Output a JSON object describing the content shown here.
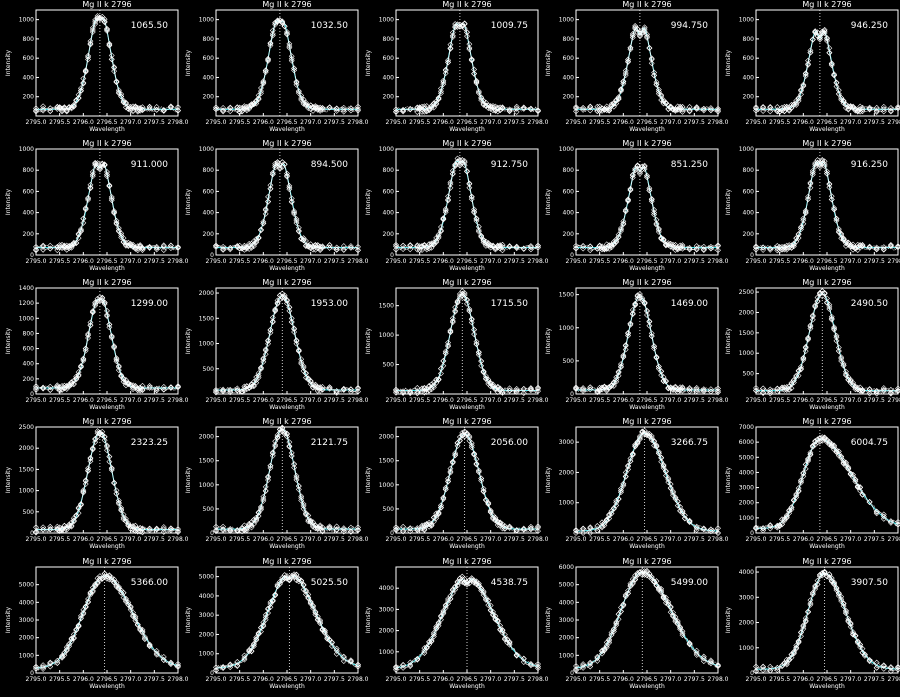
{
  "colors": {
    "background": "#000000",
    "axes": "#ffffff",
    "text": "#ffffff",
    "fit_line": "#33e0e6",
    "obs_markers": "#ffffff",
    "center_marker": "#ffffff"
  },
  "chart_data": [
    {
      "type": "line",
      "title": "Mg II k 2796",
      "annotation": "1065.50",
      "xlabel": "Wavelength",
      "ylabel": "Intensity",
      "xlim": [
        2795.0,
        2798.0
      ],
      "ylim": [
        0,
        1100
      ],
      "xticks": [
        "2795.0",
        "2795.5",
        "2796.0",
        "2796.5",
        "2797.0",
        "2797.5",
        "2798.0"
      ],
      "yticks": [
        200,
        400,
        600,
        800,
        1000
      ],
      "profile": {
        "center": 2796.35,
        "amplitude": 1030,
        "sigma": 0.22,
        "baseline": 70,
        "dip": 0.1,
        "skew": 0
      }
    },
    {
      "type": "line",
      "title": "Mg II k 2796",
      "annotation": "1032.50",
      "xlabel": "Wavelength",
      "ylabel": "Intensity",
      "xlim": [
        2795.0,
        2798.0
      ],
      "ylim": [
        0,
        1100
      ],
      "xticks": [
        "2795.0",
        "2795.5",
        "2796.0",
        "2796.5",
        "2797.0",
        "2797.5",
        "2798.0"
      ],
      "yticks": [
        200,
        400,
        600,
        800,
        1000
      ],
      "profile": {
        "center": 2796.35,
        "amplitude": 1000,
        "sigma": 0.22,
        "baseline": 70,
        "dip": 0.1,
        "skew": 0
      }
    },
    {
      "type": "line",
      "title": "Mg II k 2796",
      "annotation": "1009.75",
      "xlabel": "Wavelength",
      "ylabel": "Intensity",
      "xlim": [
        2795.0,
        2798.0
      ],
      "ylim": [
        0,
        1100
      ],
      "xticks": [
        "2795.0",
        "2795.5",
        "2796.0",
        "2796.5",
        "2797.0",
        "2797.5",
        "2798.0"
      ],
      "yticks": [
        200,
        400,
        600,
        800,
        1000
      ],
      "profile": {
        "center": 2796.35,
        "amplitude": 980,
        "sigma": 0.22,
        "baseline": 70,
        "dip": 0.12,
        "skew": 0
      }
    },
    {
      "type": "line",
      "title": "Mg II k 2796",
      "annotation": "994.750",
      "xlabel": "Wavelength",
      "ylabel": "Intensity",
      "xlim": [
        2795.0,
        2798.0
      ],
      "ylim": [
        0,
        1100
      ],
      "xticks": [
        "2795.0",
        "2795.5",
        "2796.0",
        "2796.5",
        "2797.0",
        "2797.5",
        "2798.0"
      ],
      "yticks": [
        200,
        400,
        600,
        800,
        1000
      ],
      "profile": {
        "center": 2796.35,
        "amplitude": 960,
        "sigma": 0.22,
        "baseline": 70,
        "dip": 0.2,
        "skew": 0
      }
    },
    {
      "type": "line",
      "title": "Mg II k 2796",
      "annotation": "946.250",
      "xlabel": "Wavelength",
      "ylabel": "Intensity",
      "xlim": [
        2795.0,
        2798.0
      ],
      "ylim": [
        0,
        1100
      ],
      "xticks": [
        "2795.0",
        "2795.5",
        "2796.0",
        "2796.5",
        "2797.0",
        "2797.5",
        "2798.0"
      ],
      "yticks": [
        200,
        400,
        600,
        800,
        1000
      ],
      "profile": {
        "center": 2796.35,
        "amplitude": 920,
        "sigma": 0.22,
        "baseline": 70,
        "dip": 0.2,
        "skew": 0
      }
    },
    {
      "type": "line",
      "title": "Mg II k 2796",
      "annotation": "911.000",
      "xlabel": "Wavelength",
      "ylabel": "Intensity",
      "xlim": [
        2795.0,
        2798.0
      ],
      "ylim": [
        0,
        1000
      ],
      "xticks": [
        "2795.0",
        "2795.5",
        "2796.0",
        "2796.5",
        "2797.0",
        "2797.5",
        "2798.0"
      ],
      "yticks": [
        0,
        200,
        400,
        600,
        800,
        1000
      ],
      "profile": {
        "center": 2796.35,
        "amplitude": 880,
        "sigma": 0.22,
        "baseline": 70,
        "dip": 0.15,
        "skew": 0
      }
    },
    {
      "type": "line",
      "title": "Mg II k 2796",
      "annotation": "894.500",
      "xlabel": "Wavelength",
      "ylabel": "Intensity",
      "xlim": [
        2795.0,
        2798.0
      ],
      "ylim": [
        0,
        1000
      ],
      "xticks": [
        "2795.0",
        "2795.5",
        "2796.0",
        "2796.5",
        "2797.0",
        "2797.5",
        "2798.0"
      ],
      "yticks": [
        0,
        200,
        400,
        600,
        800,
        1000
      ],
      "profile": {
        "center": 2796.35,
        "amplitude": 870,
        "sigma": 0.22,
        "baseline": 70,
        "dip": 0.12,
        "skew": 0
      }
    },
    {
      "type": "line",
      "title": "Mg II k 2796",
      "annotation": "912.750",
      "xlabel": "Wavelength",
      "ylabel": "Intensity",
      "xlim": [
        2795.0,
        2798.0
      ],
      "ylim": [
        0,
        1000
      ],
      "xticks": [
        "2795.0",
        "2795.5",
        "2796.0",
        "2796.5",
        "2797.0",
        "2797.5",
        "2798.0"
      ],
      "yticks": [
        0,
        200,
        400,
        600,
        800,
        1000
      ],
      "profile": {
        "center": 2796.35,
        "amplitude": 890,
        "sigma": 0.22,
        "baseline": 70,
        "dip": 0.1,
        "skew": 0
      }
    },
    {
      "type": "line",
      "title": "Mg II k 2796",
      "annotation": "851.250",
      "xlabel": "Wavelength",
      "ylabel": "Intensity",
      "xlim": [
        2795.0,
        2798.0
      ],
      "ylim": [
        0,
        1000
      ],
      "xticks": [
        "2795.0",
        "2795.5",
        "2796.0",
        "2796.5",
        "2797.0",
        "2797.5",
        "2798.0"
      ],
      "yticks": [
        0,
        200,
        400,
        600,
        800,
        1000
      ],
      "profile": {
        "center": 2796.35,
        "amplitude": 850,
        "sigma": 0.22,
        "baseline": 70,
        "dip": 0.15,
        "skew": 0
      }
    },
    {
      "type": "line",
      "title": "Mg II k 2796",
      "annotation": "916.250",
      "xlabel": "Wavelength",
      "ylabel": "Intensity",
      "xlim": [
        2795.0,
        2798.0
      ],
      "ylim": [
        0,
        1000
      ],
      "xticks": [
        "2795.0",
        "2795.5",
        "2796.0",
        "2796.5",
        "2797.0",
        "2797.5",
        "2798.0"
      ],
      "yticks": [
        0,
        200,
        400,
        600,
        800,
        1000
      ],
      "profile": {
        "center": 2796.35,
        "amplitude": 890,
        "sigma": 0.22,
        "baseline": 70,
        "dip": 0.12,
        "skew": 0
      }
    },
    {
      "type": "line",
      "title": "Mg II k 2796",
      "annotation": "1299.00",
      "xlabel": "Wavelength",
      "ylabel": "Intensity",
      "xlim": [
        2795.0,
        2798.0
      ],
      "ylim": [
        0,
        1400
      ],
      "xticks": [
        "2795.0",
        "2795.5",
        "2796.0",
        "2796.5",
        "2797.0",
        "2797.5",
        "2798.0"
      ],
      "yticks": [
        0,
        200,
        400,
        600,
        800,
        1000,
        1200,
        1400
      ],
      "profile": {
        "center": 2796.35,
        "amplitude": 1220,
        "sigma": 0.23,
        "baseline": 80,
        "dip": 0.04,
        "skew": 0
      }
    },
    {
      "type": "line",
      "title": "Mg II k 2796",
      "annotation": "1953.00",
      "xlabel": "Wavelength",
      "ylabel": "Intensity",
      "xlim": [
        2795.0,
        2798.0
      ],
      "ylim": [
        0,
        2100
      ],
      "xticks": [
        "2795.0",
        "2795.5",
        "2796.0",
        "2796.5",
        "2797.0",
        "2797.5",
        "2798.0"
      ],
      "yticks": [
        500,
        1000,
        1500,
        2000
      ],
      "profile": {
        "center": 2796.4,
        "amplitude": 1870,
        "sigma": 0.26,
        "baseline": 80,
        "dip": 0,
        "skew": 0
      }
    },
    {
      "type": "line",
      "title": "Mg II k 2796",
      "annotation": "1715.50",
      "xlabel": "Wavelength",
      "ylabel": "Intensity",
      "xlim": [
        2795.0,
        2798.0
      ],
      "ylim": [
        0,
        1800
      ],
      "xticks": [
        "2795.0",
        "2795.5",
        "2796.0",
        "2796.5",
        "2797.0",
        "2797.5",
        "2798.0"
      ],
      "yticks": [
        500,
        1000,
        1500
      ],
      "profile": {
        "center": 2796.4,
        "amplitude": 1640,
        "sigma": 0.25,
        "baseline": 60,
        "dip": 0,
        "skew": 0
      }
    },
    {
      "type": "line",
      "title": "Mg II k 2796",
      "annotation": "1469.00",
      "xlabel": "Wavelength",
      "ylabel": "Intensity",
      "xlim": [
        2795.0,
        2798.0
      ],
      "ylim": [
        0,
        1600
      ],
      "xticks": [
        "2795.0",
        "2795.5",
        "2796.0",
        "2796.5",
        "2797.0",
        "2797.5",
        "2798.0"
      ],
      "yticks": [
        0,
        500,
        1000,
        1500
      ],
      "profile": {
        "center": 2796.35,
        "amplitude": 1420,
        "sigma": 0.24,
        "baseline": 60,
        "dip": 0,
        "skew": 0
      }
    },
    {
      "type": "line",
      "title": "Mg II k 2796",
      "annotation": "2490.50",
      "xlabel": "Wavelength",
      "ylabel": "Intensity",
      "xlim": [
        2795.0,
        2798.0
      ],
      "ylim": [
        0,
        2600
      ],
      "xticks": [
        "2795.0",
        "2795.5",
        "2796.0",
        "2796.5",
        "2797.0",
        "2797.5",
        "2798.0"
      ],
      "yticks": [
        500,
        1000,
        1500,
        2000,
        2500
      ],
      "profile": {
        "center": 2796.4,
        "amplitude": 2380,
        "sigma": 0.27,
        "baseline": 80,
        "dip": 0,
        "skew": 0
      }
    },
    {
      "type": "line",
      "title": "Mg II k 2796",
      "annotation": "2323.25",
      "xlabel": "Wavelength",
      "ylabel": "Intensity",
      "xlim": [
        2795.0,
        2798.0
      ],
      "ylim": [
        0,
        2500
      ],
      "xticks": [
        "2795.0",
        "2795.5",
        "2796.0",
        "2796.5",
        "2797.0",
        "2797.5",
        "2798.0"
      ],
      "yticks": [
        0,
        500,
        1000,
        1500,
        2000,
        2500
      ],
      "profile": {
        "center": 2796.35,
        "amplitude": 2300,
        "sigma": 0.25,
        "baseline": 80,
        "dip": 0,
        "skew": 0
      }
    },
    {
      "type": "line",
      "title": "Mg II k 2796",
      "annotation": "2121.75",
      "xlabel": "Wavelength",
      "ylabel": "Intensity",
      "xlim": [
        2795.0,
        2798.0
      ],
      "ylim": [
        0,
        2200
      ],
      "xticks": [
        "2795.0",
        "2795.5",
        "2796.0",
        "2796.5",
        "2797.0",
        "2797.5",
        "2798.0"
      ],
      "yticks": [
        0,
        500,
        1000,
        1500,
        2000
      ],
      "profile": {
        "center": 2796.4,
        "amplitude": 2080,
        "sigma": 0.26,
        "baseline": 80,
        "dip": 0,
        "skew": 0
      }
    },
    {
      "type": "line",
      "title": "Mg II k 2796",
      "annotation": "2056.00",
      "xlabel": "Wavelength",
      "ylabel": "Intensity",
      "xlim": [
        2795.0,
        2798.0
      ],
      "ylim": [
        0,
        2200
      ],
      "xticks": [
        "2795.0",
        "2795.5",
        "2796.0",
        "2796.5",
        "2797.0",
        "2797.5",
        "2798.0"
      ],
      "yticks": [
        0,
        500,
        1000,
        1500,
        2000
      ],
      "profile": {
        "center": 2796.45,
        "amplitude": 1980,
        "sigma": 0.3,
        "baseline": 80,
        "dip": 0,
        "skew": 0
      }
    },
    {
      "type": "line",
      "title": "Mg II k 2796",
      "annotation": "3266.75",
      "xlabel": "Wavelength",
      "ylabel": "Intensity",
      "xlim": [
        2795.0,
        2798.0
      ],
      "ylim": [
        0,
        3500
      ],
      "xticks": [
        "2795.0",
        "2795.5",
        "2796.0",
        "2796.5",
        "2797.0",
        "2797.5",
        "2798.0"
      ],
      "yticks": [
        1000,
        2000,
        3000
      ],
      "profile": {
        "center": 2796.45,
        "amplitude": 3230,
        "sigma": 0.38,
        "baseline": 60,
        "dip": 0,
        "skew": 0.15
      }
    },
    {
      "type": "line",
      "title": "Mg II k 2796",
      "annotation": "6004.75",
      "xlabel": "Wavelength",
      "ylabel": "Intensity",
      "xlim": [
        2795.0,
        2798.0
      ],
      "ylim": [
        0,
        7000
      ],
      "xticks": [
        "2795.0",
        "2795.5",
        "2796.0",
        "2796.5",
        "2797.0",
        "2797.5",
        "2798.0"
      ],
      "yticks": [
        0,
        1000,
        2000,
        3000,
        4000,
        5000,
        6000,
        7000
      ],
      "profile": {
        "center": 2796.35,
        "amplitude": 5900,
        "sigma": 0.35,
        "baseline": 300,
        "dip": 0,
        "skew": 0.9
      }
    },
    {
      "type": "line",
      "title": "Mg II k 2796",
      "annotation": "5366.00",
      "xlabel": "Wavelength",
      "ylabel": "Intensity",
      "xlim": [
        2795.0,
        2798.0
      ],
      "ylim": [
        0,
        6000
      ],
      "xticks": [
        "2795.0",
        "2795.5",
        "2796.0",
        "2796.5",
        "2797.0",
        "2797.5",
        "2798.0"
      ],
      "yticks": [
        0,
        1000,
        2000,
        3000,
        4000,
        5000
      ],
      "profile": {
        "center": 2796.45,
        "amplitude": 5250,
        "sigma": 0.45,
        "baseline": 250,
        "dip": 0,
        "skew": 0.3
      }
    },
    {
      "type": "line",
      "title": "Mg II k 2796",
      "annotation": "5025.50",
      "xlabel": "Wavelength",
      "ylabel": "Intensity",
      "xlim": [
        2795.0,
        2798.0
      ],
      "ylim": [
        0,
        5500
      ],
      "xticks": [
        "2795.0",
        "2795.5",
        "2796.0",
        "2796.5",
        "2797.0",
        "2797.5",
        "2798.0"
      ],
      "yticks": [
        0,
        1000,
        2000,
        3000,
        4000,
        5000
      ],
      "profile": {
        "center": 2796.55,
        "amplitude": 4900,
        "sigma": 0.45,
        "baseline": 250,
        "dip": 0.05,
        "skew": 0.2
      }
    },
    {
      "type": "line",
      "title": "Mg II k 2796",
      "annotation": "4538.75",
      "xlabel": "Wavelength",
      "ylabel": "Intensity",
      "xlim": [
        2795.0,
        2798.0
      ],
      "ylim": [
        0,
        5000
      ],
      "xticks": [
        "2795.0",
        "2795.5",
        "2796.0",
        "2796.5",
        "2797.0",
        "2797.5",
        "2798.0"
      ],
      "yticks": [
        1000,
        2000,
        3000,
        4000
      ],
      "profile": {
        "center": 2796.5,
        "amplitude": 4350,
        "sigma": 0.5,
        "baseline": 200,
        "dip": 0.08,
        "skew": 0.1
      }
    },
    {
      "type": "line",
      "title": "Mg II k 2796",
      "annotation": "5499.00",
      "xlabel": "Wavelength",
      "ylabel": "Intensity",
      "xlim": [
        2795.0,
        2798.0
      ],
      "ylim": [
        0,
        6000
      ],
      "xticks": [
        "2795.0",
        "2795.5",
        "2796.0",
        "2796.5",
        "2797.0",
        "2797.5",
        "2798.0"
      ],
      "yticks": [
        0,
        1000,
        2000,
        3000,
        4000,
        5000,
        6000
      ],
      "profile": {
        "center": 2796.4,
        "amplitude": 5450,
        "sigma": 0.45,
        "baseline": 250,
        "dip": 0,
        "skew": 0.35
      }
    },
    {
      "type": "line",
      "title": "Mg II k 2796",
      "annotation": "3907.50",
      "xlabel": "Wavelength",
      "ylabel": "Intensity",
      "xlim": [
        2795.0,
        2798.0
      ],
      "ylim": [
        0,
        4200
      ],
      "xticks": [
        "2795.0",
        "2795.5",
        "2796.0",
        "2796.5",
        "2797.0",
        "2797.5",
        "2798.0"
      ],
      "yticks": [
        0,
        1000,
        2000,
        3000,
        4000
      ],
      "profile": {
        "center": 2796.45,
        "amplitude": 3800,
        "sigma": 0.35,
        "baseline": 150,
        "dip": 0,
        "skew": 0.25
      }
    }
  ]
}
